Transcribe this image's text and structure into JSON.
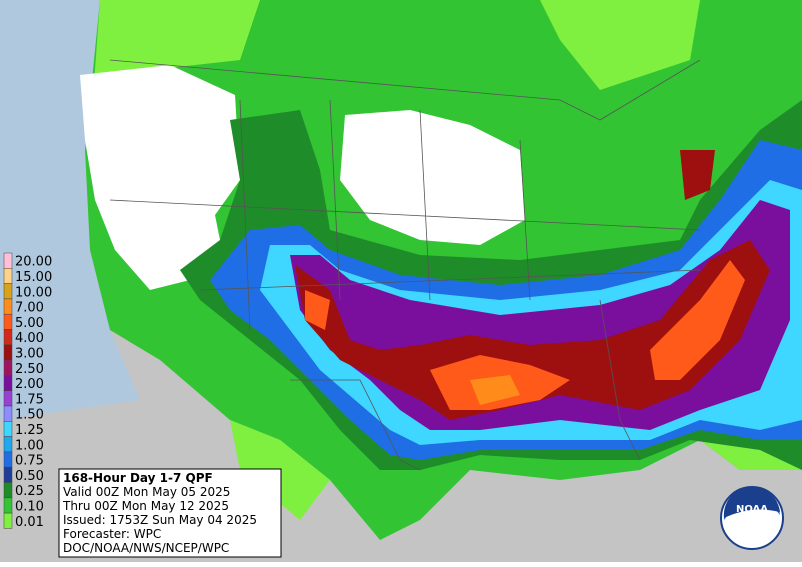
{
  "legend": {
    "items": [
      {
        "label": "20.00",
        "color": "#ffbfd6"
      },
      {
        "label": "15.00",
        "color": "#ffd28a"
      },
      {
        "label": "10.00",
        "color": "#d9a21b"
      },
      {
        "label": "7.00",
        "color": "#ff8c1a"
      },
      {
        "label": "5.00",
        "color": "#ff5a1a"
      },
      {
        "label": "4.00",
        "color": "#d4281a"
      },
      {
        "label": "3.00",
        "color": "#9e0f0f"
      },
      {
        "label": "2.50",
        "color": "#a0145f"
      },
      {
        "label": "2.00",
        "color": "#7a0f9e"
      },
      {
        "label": "1.75",
        "color": "#9a3fd6"
      },
      {
        "label": "1.50",
        "color": "#8c8cff"
      },
      {
        "label": "1.25",
        "color": "#3fd6ff"
      },
      {
        "label": "1.00",
        "color": "#1fa8f0"
      },
      {
        "label": "0.75",
        "color": "#1f6ee6"
      },
      {
        "label": "0.50",
        "color": "#1f3d99"
      },
      {
        "label": "0.25",
        "color": "#1f8c2a"
      },
      {
        "label": "0.10",
        "color": "#33c433"
      },
      {
        "label": "0.01",
        "color": "#80f040"
      }
    ]
  },
  "info": {
    "lines": [
      "168-Hour Day 1-7 QPF",
      "Valid 00Z Mon May 05 2025",
      "Thru 00Z Mon May 12 2025",
      "Issued: 1753Z Sun May 04 2025",
      "Forecaster: WPC",
      "DOC/NOAA/NWS/NCEP/WPC"
    ]
  },
  "logo": "NOAA"
}
